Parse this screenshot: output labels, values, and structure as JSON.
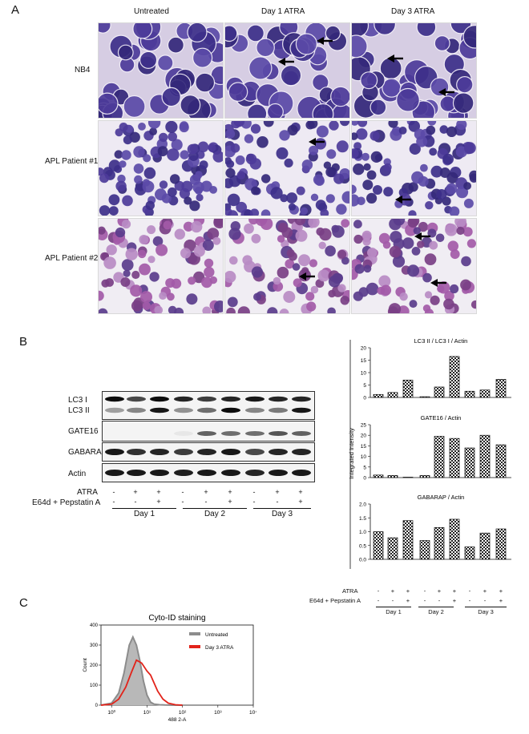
{
  "panels": {
    "a": "A",
    "b": "B",
    "c": "C"
  },
  "panel_a": {
    "columns": [
      "Untreated",
      "Day 1 ATRA",
      "Day 3 ATRA"
    ],
    "rows": [
      "NB4",
      "APL Patient #1",
      "APL Patient #2"
    ]
  },
  "panel_b": {
    "blot_rows": [
      "LC3 I",
      "LC3 II",
      "GATE16",
      "GABARAP",
      "Actin"
    ],
    "treatments": [
      {
        "label": "ATRA",
        "signs": [
          "-",
          "+",
          "+",
          "-",
          "+",
          "+",
          "-",
          "+",
          "+"
        ]
      },
      {
        "label": "E64d + Pepstatin A",
        "signs": [
          "-",
          "-",
          "+",
          "-",
          "-",
          "+",
          "-",
          "-",
          "+"
        ]
      }
    ],
    "days": [
      "Day 1",
      "Day 2",
      "Day 3"
    ]
  },
  "chart_data": [
    {
      "type": "bar",
      "title": "LC3 II / LC3 I / Actin",
      "ylabel": "Integrated Intensity",
      "ylim": [
        0,
        20
      ],
      "yticks": [
        0,
        5,
        10,
        15,
        20
      ],
      "values": [
        1.2,
        2.0,
        7.0,
        0.3,
        4.2,
        16.5,
        2.5,
        3.0,
        7.3
      ],
      "pattern": "checkered"
    },
    {
      "type": "bar",
      "title": "GATE16 / Actin",
      "ylabel": "Integrated Intensity",
      "ylim": [
        0,
        25
      ],
      "yticks": [
        0,
        5,
        10,
        15,
        20,
        25
      ],
      "values": [
        1.2,
        1.0,
        0.2,
        1.0,
        19.5,
        18.5,
        14.0,
        20.0,
        15.5
      ],
      "pattern": "checkered"
    },
    {
      "type": "bar",
      "title": "GABARAP / Actin",
      "ylabel": "Integrated Intensity",
      "ylim": [
        0,
        2.0
      ],
      "yticks": [
        "0.0",
        "0.5",
        "1.0",
        "1.5",
        "2.0"
      ],
      "values": [
        1.0,
        0.78,
        1.4,
        0.68,
        1.15,
        1.45,
        0.45,
        0.95,
        1.1
      ],
      "pattern": "checkered"
    },
    {
      "type": "histogram",
      "title": "Cyto-ID staining",
      "xlabel": "488 2-A",
      "ylabel": "Count",
      "ylim": [
        0,
        400
      ],
      "yticks": [
        0,
        100,
        200,
        300,
        400
      ],
      "xticks": [
        "10⁰",
        "10¹",
        "10²",
        "10³",
        "10⁴"
      ],
      "legend_position": "top-right",
      "series": [
        {
          "name": "Untreated",
          "color": "#8c8c8c",
          "fill": "#b8b8b8",
          "x": [
            -0.3,
            0.0,
            0.2,
            0.35,
            0.5,
            0.6,
            0.7,
            0.8,
            0.9,
            1.0,
            1.1,
            1.2,
            1.35,
            1.5,
            1.7,
            2.0
          ],
          "y": [
            0,
            10,
            60,
            160,
            300,
            340,
            300,
            220,
            120,
            50,
            15,
            5,
            2,
            1,
            0,
            0
          ]
        },
        {
          "name": "Day 3 ATRA",
          "color": "#e2231a",
          "x": [
            -0.3,
            0.0,
            0.2,
            0.4,
            0.55,
            0.7,
            0.85,
            1.0,
            1.1,
            1.2,
            1.3,
            1.45,
            1.6,
            1.8,
            2.0
          ],
          "y": [
            0,
            5,
            30,
            90,
            160,
            225,
            210,
            170,
            150,
            110,
            70,
            30,
            10,
            2,
            0
          ]
        }
      ]
    }
  ]
}
